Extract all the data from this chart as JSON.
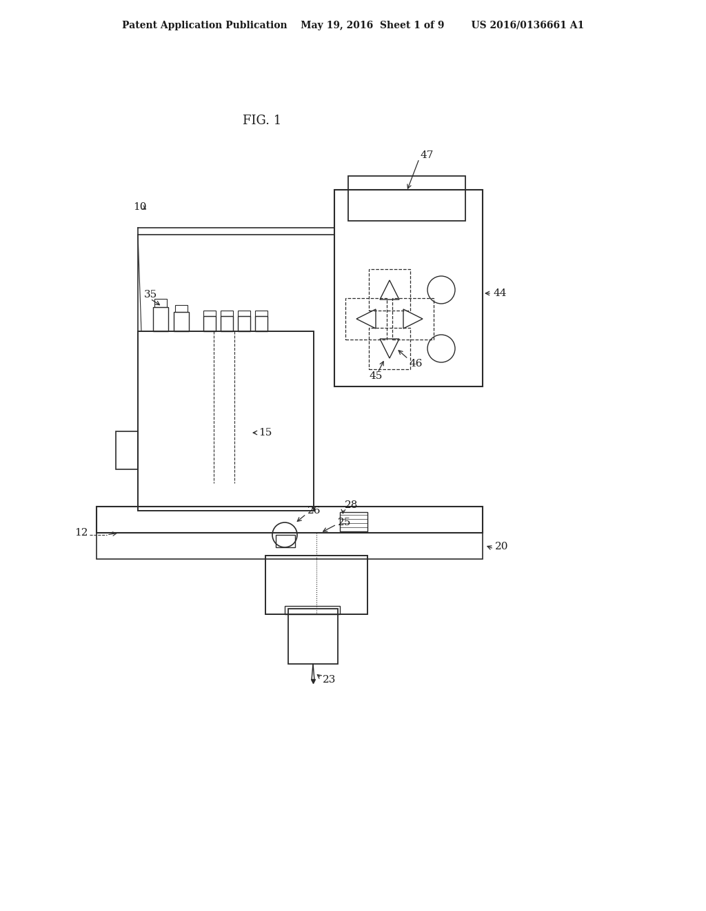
{
  "bg_color": "#ffffff",
  "line_color": "#2a2a2a",
  "text_color": "#1a1a1a",
  "header": "Patent Application Publication    May 19, 2016  Sheet 1 of 9        US 2016/0136661 A1"
}
